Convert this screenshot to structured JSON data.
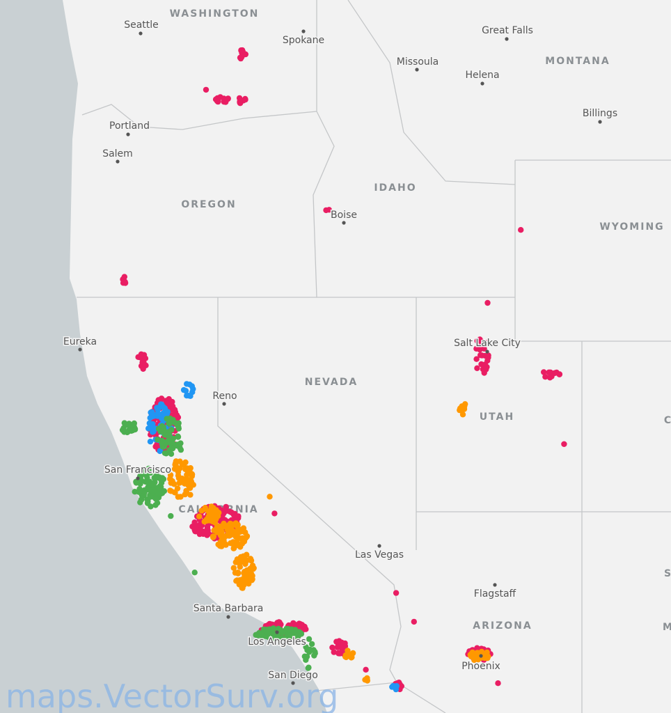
{
  "states": [
    "WASHINGTON",
    "MONTANA",
    "OREGON",
    "IDAHO",
    "WYOMING",
    "NEVADA",
    "UTAH",
    "CALIFORNIA",
    "ARIZONA",
    "C",
    "S",
    "M"
  ],
  "cities": [
    "Seattle",
    "Spokane",
    "Great Falls",
    "Missoula",
    "Helena",
    "Billings",
    "Portland",
    "Salem",
    "Boise",
    "Eureka",
    "Salt Lake City",
    "Reno",
    "San Francisco",
    "Las Vegas",
    "Flagstaff",
    "Santa Barbara",
    "Los Angeles",
    "San Diego",
    "Phoenix"
  ],
  "watermark": "maps.VectorSurv.org"
}
